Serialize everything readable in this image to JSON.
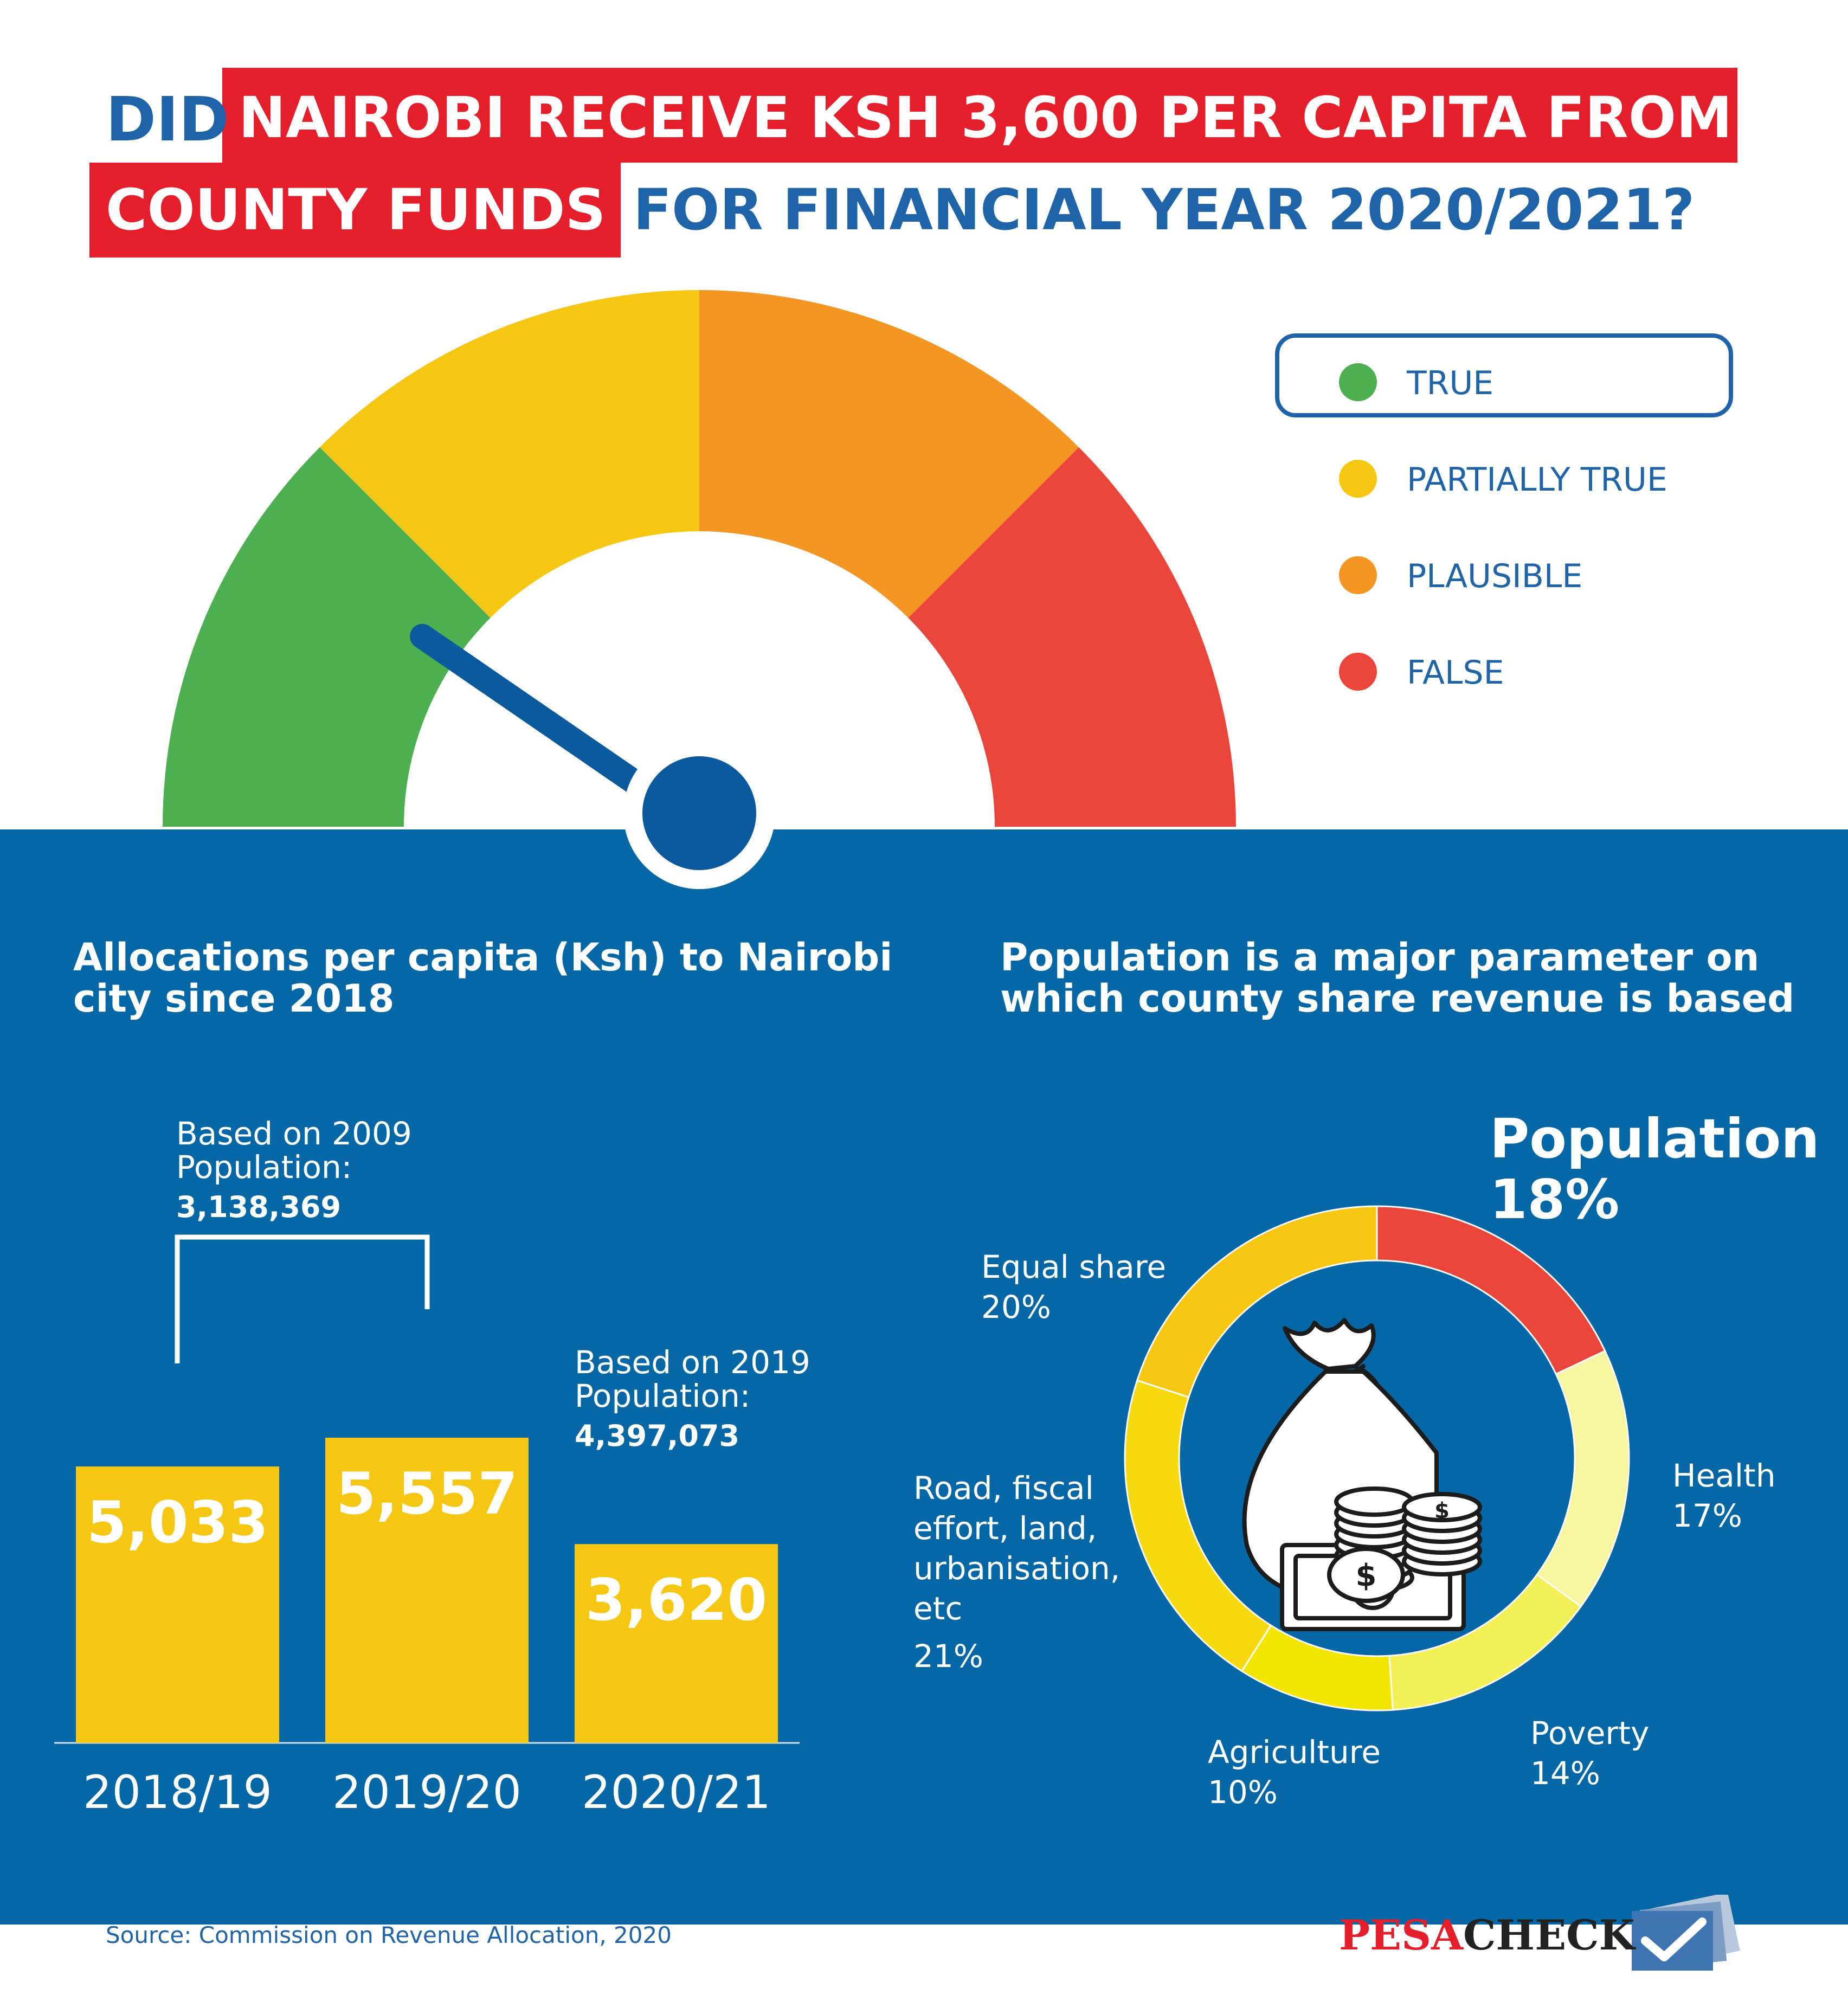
{
  "title": {
    "did": "DID",
    "highlight_1": "NAIROBI RECEIVE KSH 3,600 PER CAPITA FROM",
    "highlight_2": "COUNTY FUNDS",
    "rest": "FOR FINANCIAL YEAR 2020/2021?"
  },
  "legend": [
    {
      "label": "TRUE",
      "color": "#4caf50",
      "selected": true
    },
    {
      "label": "PARTIALLY TRUE",
      "color": "#f6c712",
      "selected": false
    },
    {
      "label": "PLAUSIBLE",
      "color": "#f39623",
      "selected": false
    },
    {
      "label": "FALSE",
      "color": "#e9453a",
      "selected": false
    }
  ],
  "gauge": {
    "verdict": "TRUE",
    "segments": [
      {
        "name": "TRUE",
        "color": "#4caf50"
      },
      {
        "name": "PARTIALLY TRUE",
        "color": "#f6c712"
      },
      {
        "name": "PLAUSIBLE",
        "color": "#f39623"
      },
      {
        "name": "FALSE",
        "color": "#e9453a"
      }
    ],
    "needle_color": "#0b5a9e"
  },
  "left_section": {
    "heading_line1": "Allocations per capita (Ksh) to Nairobi",
    "heading_line2": "city since 2018",
    "note_2009_line1": "Based on 2009",
    "note_2009_line2": "Population:",
    "note_2009_value": "3,138,369",
    "note_2019_line1": "Based on 2019",
    "note_2019_line2": "Population:",
    "note_2019_value": "4,397,073"
  },
  "right_section": {
    "heading_line1": "Population is a major parameter on",
    "heading_line2": "which county share revenue is based",
    "population_label": "Population",
    "population_pct": "18%",
    "labels": {
      "equal_line1": "Equal share",
      "equal_pct": "20%",
      "road_line1": "Road, fiscal",
      "road_line2": "effort, land,",
      "road_line3": "urbanisation,",
      "road_line4": "etc",
      "road_pct": "21%",
      "health_line1": "Health",
      "health_pct": "17%",
      "poverty_line1": "Poverty",
      "poverty_pct": "14%",
      "agri_line1": "Agriculture",
      "agri_pct": "10%"
    }
  },
  "chart_data": [
    {
      "type": "bar",
      "title": "Allocations per capita (Ksh) to Nairobi city since 2018",
      "categories": [
        "2018/19",
        "2019/20",
        "2020/21"
      ],
      "values": [
        5033,
        5557,
        3620
      ],
      "value_labels": [
        "5,033",
        "5,557",
        "3,620"
      ],
      "ylim": [
        0,
        7600
      ],
      "color": "#f6c712",
      "grid": false
    },
    {
      "type": "pie",
      "title": "Population is a major parameter on which county share revenue is based",
      "slices": [
        {
          "label": "Population",
          "value": 18,
          "color": "#e9453a"
        },
        {
          "label": "Health",
          "value": 17,
          "color": "#f7f5a0"
        },
        {
          "label": "Poverty",
          "value": 14,
          "color": "#f2ef57"
        },
        {
          "label": "Agriculture",
          "value": 10,
          "color": "#f2e600"
        },
        {
          "label": "Road, fiscal effort, land, urbanisation, etc",
          "value": 21,
          "color": "#f6d90f"
        },
        {
          "label": "Equal share",
          "value": 20,
          "color": "#f6c712"
        }
      ]
    }
  ],
  "footer": {
    "source": "Source: Commission on Revenue Allocation, 2020",
    "brand_part1": "PESA",
    "brand_part2": "CHECK",
    "brand_color1": "#e41e2b",
    "brand_color2": "#222222"
  }
}
